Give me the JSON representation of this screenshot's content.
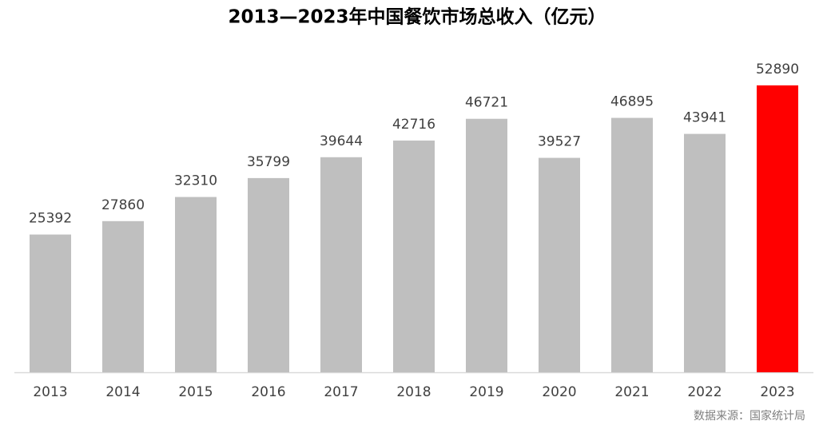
{
  "chart_data": {
    "type": "bar",
    "title": "2013—2023年中国餐饮市场总收入（亿元）",
    "categories": [
      "2013",
      "2014",
      "2015",
      "2016",
      "2017",
      "2018",
      "2019",
      "2020",
      "2021",
      "2022",
      "2023"
    ],
    "values": [
      25392,
      27860,
      32310,
      35799,
      39644,
      42716,
      46721,
      39527,
      46895,
      43941,
      52890
    ],
    "colors": [
      "#bfbfbf",
      "#bfbfbf",
      "#bfbfbf",
      "#bfbfbf",
      "#bfbfbf",
      "#bfbfbf",
      "#bfbfbf",
      "#bfbfbf",
      "#bfbfbf",
      "#bfbfbf",
      "#ff0000"
    ],
    "ylim": [
      0,
      55000
    ],
    "source": "数据来源：国家统计局"
  }
}
